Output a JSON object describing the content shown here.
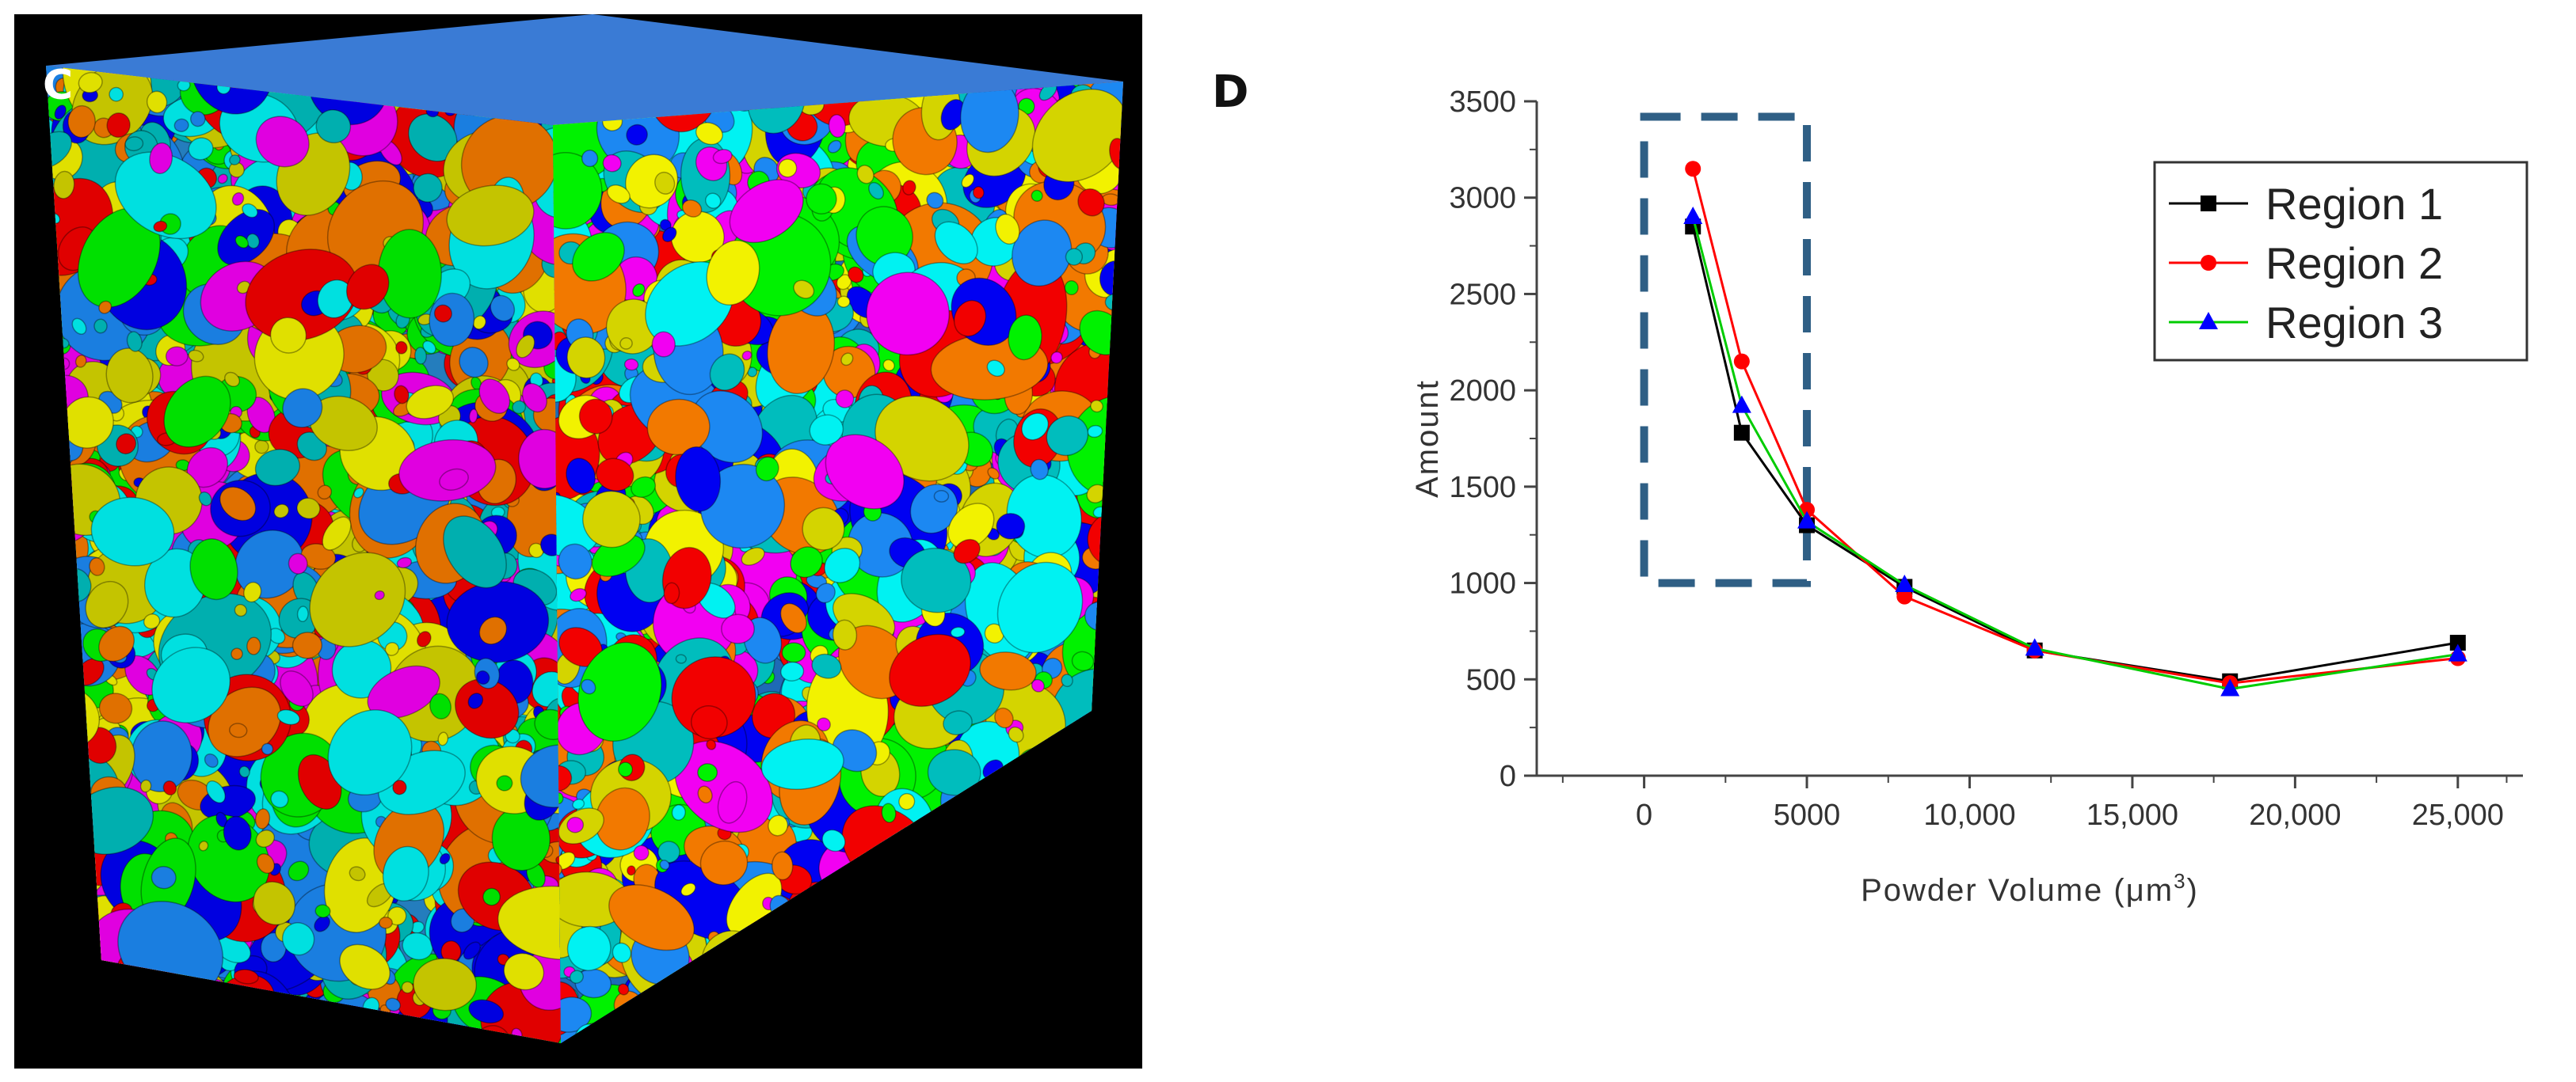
{
  "panels": [
    {
      "label": "C",
      "description_type": "3d-particle-render",
      "palette": [
        "#ff0000",
        "#00ff00",
        "#0000ff",
        "#ffff00",
        "#ff00ff",
        "#00ffff",
        "#ff8000",
        "#1e90ff",
        "#00c8c8",
        "#e0e000"
      ]
    },
    {
      "label": "D"
    }
  ],
  "chart_data": {
    "type": "line",
    "title": "",
    "xlabel": "Powder Volume (μm",
    "xlabel_sup": "3",
    "xlabel_close": ")",
    "ylabel": "Amount",
    "xlim": [
      -3300,
      27000
    ],
    "ylim": [
      0,
      3500
    ],
    "xticks": [
      0,
      5000,
      10000,
      15000,
      20000,
      25000
    ],
    "xtick_labels": [
      "0",
      "5000",
      "10,000",
      "15,000",
      "20,000",
      "25,000"
    ],
    "yticks": [
      0,
      500,
      1000,
      1500,
      2000,
      2500,
      3000,
      3500
    ],
    "ytick_labels": [
      "0",
      "500",
      "1000",
      "1500",
      "2000",
      "2500",
      "3000",
      "3500"
    ],
    "legend_position": "top-right",
    "series": [
      {
        "name": "Region 1",
        "color": "#000000",
        "marker": "square",
        "x": [
          1500,
          3000,
          5000,
          8000,
          12000,
          18000,
          25000
        ],
        "y": [
          2850,
          1780,
          1300,
          980,
          650,
          490,
          690
        ]
      },
      {
        "name": "Region 2",
        "color": "#ff0000",
        "marker": "circle",
        "x": [
          1500,
          3000,
          5000,
          8000,
          12000,
          18000,
          25000
        ],
        "y": [
          3150,
          2150,
          1380,
          930,
          650,
          480,
          610
        ]
      },
      {
        "name": "Region 3",
        "color": "#00cc00",
        "marker_color": "#0000ff",
        "marker": "triangle",
        "x": [
          1500,
          3000,
          5000,
          8000,
          12000,
          18000,
          25000
        ],
        "y": [
          2900,
          1920,
          1320,
          990,
          660,
          450,
          630
        ]
      }
    ],
    "highlight_box": {
      "x_range": [
        0,
        5000
      ],
      "y_range": [
        1000,
        3420
      ],
      "color": "#2f5f85",
      "style": "dashed"
    }
  }
}
